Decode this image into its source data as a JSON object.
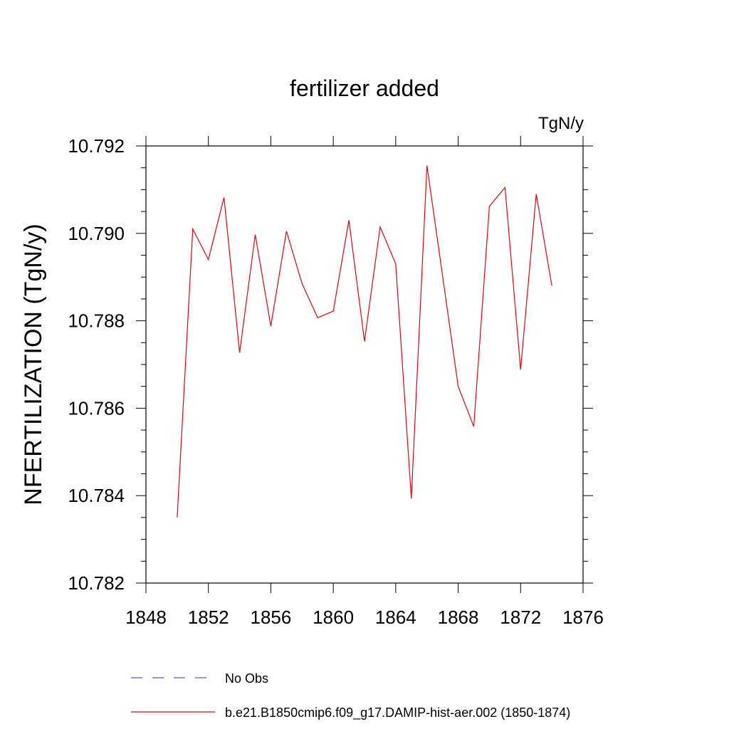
{
  "chart_data": {
    "type": "line",
    "title": "fertilizer added",
    "units": "TgN/y",
    "ylabel": "NFERTILIZATION  (TgN/y)",
    "xlabel": "",
    "xlim": [
      1848,
      1876
    ],
    "ylim": [
      10.782,
      10.792
    ],
    "xticks": [
      1848,
      1852,
      1856,
      1860,
      1864,
      1868,
      1872,
      1876
    ],
    "yticks": [
      10.782,
      10.784,
      10.786,
      10.788,
      10.79,
      10.792
    ],
    "ytick_labels": [
      "10.782",
      "10.784",
      "10.786",
      "10.788",
      "10.790",
      "10.792"
    ],
    "grid": false,
    "legend_position": "bottom",
    "legend": [
      {
        "label": "No Obs",
        "color": "#5a5ad0",
        "style": "dashed"
      },
      {
        "label": "b.e21.B1850cmip6.f09_g17.DAMIP-hist-aer.002 (1850-1874)",
        "color": "#e8000b",
        "style": "solid"
      }
    ],
    "series": [
      {
        "name": "b.e21.B1850cmip6.f09_g17.DAMIP-hist-aer.002 (1850-1874)",
        "color": "#e8000b",
        "x": [
          1850,
          1851,
          1852,
          1853,
          1854,
          1855,
          1856,
          1857,
          1858,
          1859,
          1860,
          1861,
          1862,
          1863,
          1864,
          1865,
          1866,
          1867,
          1868,
          1869,
          1870,
          1871,
          1872,
          1873,
          1874
        ],
        "y": [
          10.7835,
          10.7901,
          10.7894,
          10.79082,
          10.78727,
          10.78997,
          10.78788,
          10.79005,
          10.78885,
          10.78807,
          10.78822,
          10.7903,
          10.78753,
          10.79015,
          10.7893,
          10.78393,
          10.79155,
          10.78903,
          10.7865,
          10.78558,
          10.79062,
          10.79105,
          10.78688,
          10.7909,
          10.7888
        ]
      }
    ]
  }
}
